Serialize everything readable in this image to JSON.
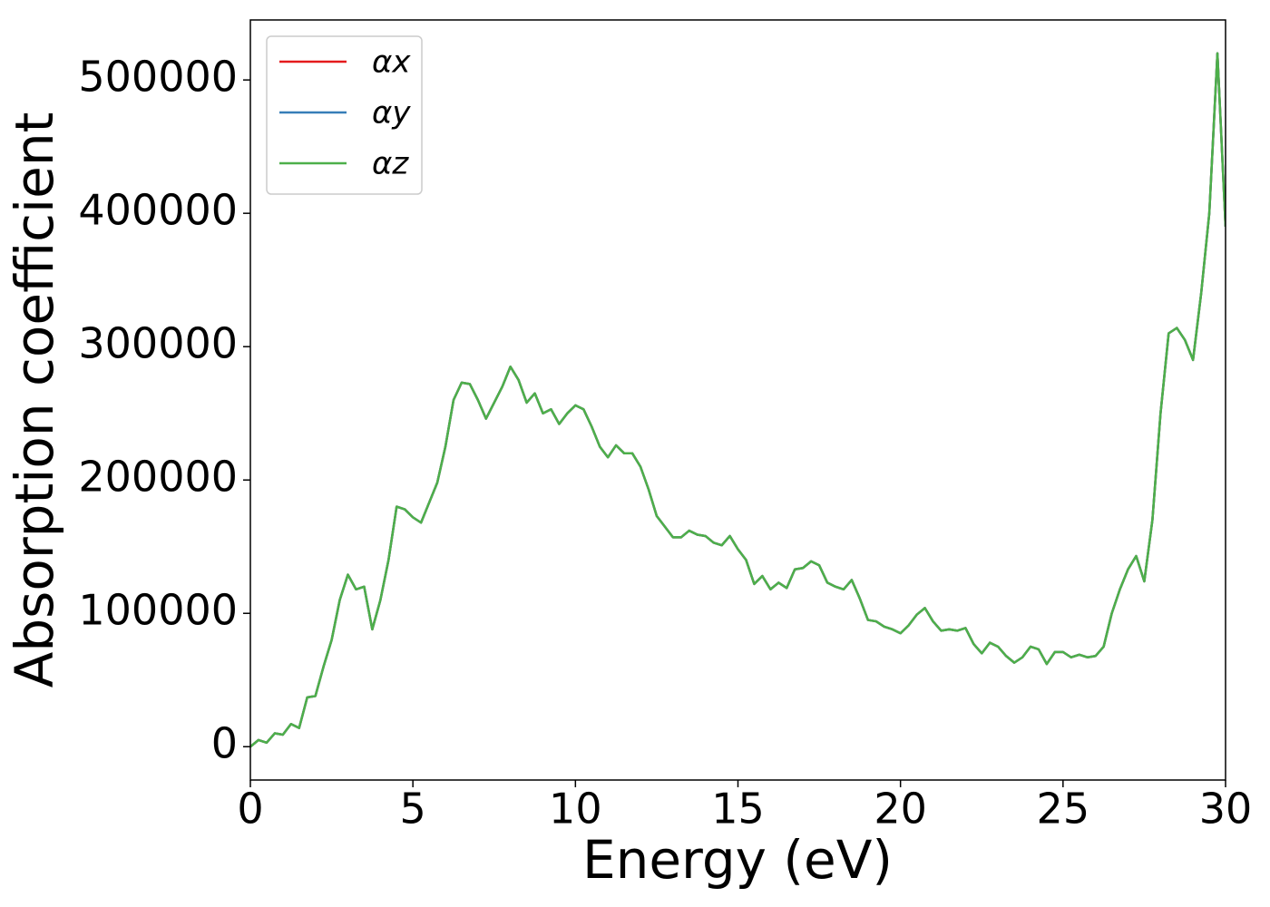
{
  "chart_data": {
    "type": "line",
    "xlabel": "Energy (eV)",
    "ylabel": "Absorption coefficient",
    "xlim": [
      0,
      30
    ],
    "ylim": [
      -25000,
      545000
    ],
    "xticks": [
      0,
      5,
      10,
      15,
      20,
      25,
      30
    ],
    "yticks": [
      0,
      100000,
      200000,
      300000,
      400000,
      500000
    ],
    "legend": "upper left",
    "x": [
      0,
      0.25,
      0.5,
      0.75,
      1,
      1.25,
      1.5,
      1.75,
      2,
      2.25,
      2.5,
      2.75,
      3,
      3.25,
      3.5,
      3.75,
      4,
      4.25,
      4.5,
      4.75,
      5,
      5.25,
      5.5,
      5.75,
      6,
      6.25,
      6.5,
      6.75,
      7,
      7.25,
      7.5,
      7.75,
      8,
      8.25,
      8.5,
      8.75,
      9,
      9.25,
      9.5,
      9.75,
      10,
      10.25,
      10.5,
      10.75,
      11,
      11.25,
      11.5,
      11.75,
      12,
      12.25,
      12.5,
      12.75,
      13,
      13.25,
      13.5,
      13.75,
      14,
      14.25,
      14.5,
      14.75,
      15,
      15.25,
      15.5,
      15.75,
      16,
      16.25,
      16.5,
      16.75,
      17,
      17.25,
      17.5,
      17.75,
      18,
      18.25,
      18.5,
      18.75,
      19,
      19.25,
      19.5,
      19.75,
      20,
      20.25,
      20.5,
      20.75,
      21,
      21.25,
      21.5,
      21.75,
      22,
      22.25,
      22.5,
      22.75,
      23,
      23.25,
      23.5,
      23.75,
      24,
      24.25,
      24.5,
      24.75,
      25,
      25.25,
      25.5,
      25.75,
      26,
      26.25,
      26.5,
      26.75,
      27,
      27.25,
      27.5,
      27.75,
      28,
      28.25,
      28.5,
      28.75,
      29,
      29.25,
      29.5,
      29.75,
      30
    ],
    "series": [
      {
        "name": "αx",
        "color": "#e41a1c",
        "values": [
          0,
          5000,
          3000,
          10000,
          9000,
          17000,
          14000,
          37000,
          38000,
          60000,
          80000,
          110000,
          129000,
          118000,
          120000,
          88000,
          110000,
          140000,
          180000,
          178000,
          172000,
          168000,
          183000,
          198000,
          225000,
          260000,
          273000,
          272000,
          260000,
          246000,
          258000,
          270000,
          285000,
          275000,
          258000,
          265000,
          250000,
          253000,
          242000,
          250000,
          256000,
          253000,
          240000,
          225000,
          217000,
          226000,
          220000,
          220000,
          210000,
          193000,
          173000,
          165000,
          157000,
          157000,
          162000,
          159000,
          158000,
          153000,
          151000,
          158000,
          148000,
          140000,
          122000,
          128000,
          118000,
          123000,
          119000,
          133000,
          134000,
          139000,
          136000,
          123000,
          120000,
          118000,
          125000,
          111000,
          95000,
          94000,
          90000,
          88000,
          85000,
          91000,
          99000,
          104000,
          94000,
          87000,
          88000,
          87000,
          89000,
          77000,
          70000,
          78000,
          75000,
          68000,
          63000,
          67000,
          75000,
          73000,
          62000,
          71000,
          71000,
          67000,
          69000,
          67000,
          68000,
          75000,
          100000,
          118000,
          133000,
          143000,
          124000,
          170000,
          250000,
          310000,
          314000,
          305000,
          290000,
          340000,
          400000,
          520000,
          390000
        ]
      },
      {
        "name": "αy",
        "color": "#377eb8",
        "values": [
          0,
          5000,
          3000,
          10000,
          9000,
          17000,
          14000,
          37000,
          38000,
          60000,
          80000,
          110000,
          129000,
          118000,
          120000,
          88000,
          110000,
          140000,
          180000,
          178000,
          172000,
          168000,
          183000,
          198000,
          225000,
          260000,
          273000,
          272000,
          260000,
          246000,
          258000,
          270000,
          285000,
          275000,
          258000,
          265000,
          250000,
          253000,
          242000,
          250000,
          256000,
          253000,
          240000,
          225000,
          217000,
          226000,
          220000,
          220000,
          210000,
          193000,
          173000,
          165000,
          157000,
          157000,
          162000,
          159000,
          158000,
          153000,
          151000,
          158000,
          148000,
          140000,
          122000,
          128000,
          118000,
          123000,
          119000,
          133000,
          134000,
          139000,
          136000,
          123000,
          120000,
          118000,
          125000,
          111000,
          95000,
          94000,
          90000,
          88000,
          85000,
          91000,
          99000,
          104000,
          94000,
          87000,
          88000,
          87000,
          89000,
          77000,
          70000,
          78000,
          75000,
          68000,
          63000,
          67000,
          75000,
          73000,
          62000,
          71000,
          71000,
          67000,
          69000,
          67000,
          68000,
          75000,
          100000,
          118000,
          133000,
          143000,
          124000,
          170000,
          250000,
          310000,
          314000,
          305000,
          290000,
          340000,
          400000,
          520000,
          390000
        ]
      },
      {
        "name": "αz",
        "color": "#4daf4a",
        "values": [
          0,
          5000,
          3000,
          10000,
          9000,
          17000,
          14000,
          37000,
          38000,
          60000,
          80000,
          110000,
          129000,
          118000,
          120000,
          88000,
          110000,
          140000,
          180000,
          178000,
          172000,
          168000,
          183000,
          198000,
          225000,
          260000,
          273000,
          272000,
          260000,
          246000,
          258000,
          270000,
          285000,
          275000,
          258000,
          265000,
          250000,
          253000,
          242000,
          250000,
          256000,
          253000,
          240000,
          225000,
          217000,
          226000,
          220000,
          220000,
          210000,
          193000,
          173000,
          165000,
          157000,
          157000,
          162000,
          159000,
          158000,
          153000,
          151000,
          158000,
          148000,
          140000,
          122000,
          128000,
          118000,
          123000,
          119000,
          133000,
          134000,
          139000,
          136000,
          123000,
          120000,
          118000,
          125000,
          111000,
          95000,
          94000,
          90000,
          88000,
          85000,
          91000,
          99000,
          104000,
          94000,
          87000,
          88000,
          87000,
          89000,
          77000,
          70000,
          78000,
          75000,
          68000,
          63000,
          67000,
          75000,
          73000,
          62000,
          71000,
          71000,
          67000,
          69000,
          67000,
          68000,
          75000,
          100000,
          118000,
          133000,
          143000,
          124000,
          170000,
          250000,
          310000,
          314000,
          305000,
          290000,
          340000,
          400000,
          520000,
          390000
        ]
      }
    ]
  }
}
